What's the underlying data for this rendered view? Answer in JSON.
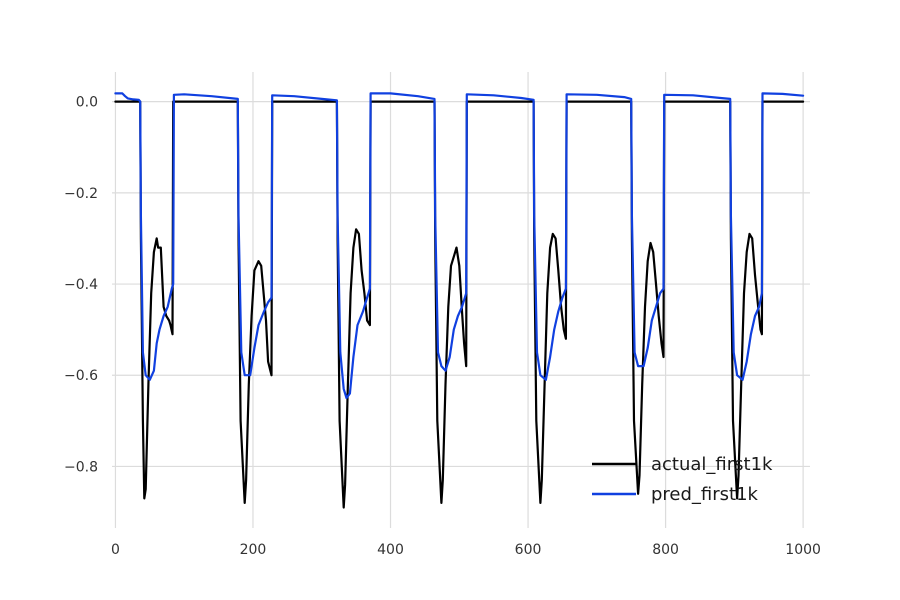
{
  "chart_data": {
    "type": "line",
    "title": "",
    "xlabel": "",
    "ylabel": "",
    "xlim": [
      -5,
      1010
    ],
    "ylim": [
      -0.935,
      0.065
    ],
    "xticks": [
      0,
      200,
      400,
      600,
      800,
      1000
    ],
    "yticks": [
      0.0,
      -0.2,
      -0.4,
      -0.6,
      -0.8
    ],
    "xtick_labels": [
      "0",
      "200",
      "400",
      "600",
      "800",
      "1000"
    ],
    "ytick_labels": [
      "0.0",
      "−0.2",
      "−0.4",
      "−0.6",
      "−0.8"
    ],
    "grid": true,
    "legend_position": "lower-right",
    "series": [
      {
        "name": "actual_first1k",
        "color": "#000000",
        "points": [
          [
            0,
            0.0
          ],
          [
            36,
            0.0
          ],
          [
            37,
            -0.3
          ],
          [
            40,
            -0.7
          ],
          [
            42,
            -0.87
          ],
          [
            44,
            -0.85
          ],
          [
            48,
            -0.62
          ],
          [
            52,
            -0.42
          ],
          [
            56,
            -0.33
          ],
          [
            60,
            -0.3
          ],
          [
            62,
            -0.32
          ],
          [
            66,
            -0.32
          ],
          [
            70,
            -0.45
          ],
          [
            74,
            -0.47
          ],
          [
            78,
            -0.48
          ],
          [
            80,
            -0.49
          ],
          [
            83,
            -0.51
          ],
          [
            84,
            0.0
          ],
          [
            178,
            0.0
          ],
          [
            179,
            -0.3
          ],
          [
            182,
            -0.7
          ],
          [
            188,
            -0.88
          ],
          [
            190,
            -0.83
          ],
          [
            194,
            -0.62
          ],
          [
            198,
            -0.47
          ],
          [
            202,
            -0.37
          ],
          [
            208,
            -0.35
          ],
          [
            212,
            -0.36
          ],
          [
            216,
            -0.43
          ],
          [
            219,
            -0.48
          ],
          [
            222,
            -0.57
          ],
          [
            227,
            -0.6
          ],
          [
            228,
            0.0
          ],
          [
            322,
            0.0
          ],
          [
            323,
            -0.3
          ],
          [
            326,
            -0.7
          ],
          [
            332,
            -0.89
          ],
          [
            334,
            -0.84
          ],
          [
            338,
            -0.62
          ],
          [
            342,
            -0.42
          ],
          [
            346,
            -0.32
          ],
          [
            350,
            -0.28
          ],
          [
            354,
            -0.29
          ],
          [
            358,
            -0.37
          ],
          [
            362,
            -0.42
          ],
          [
            366,
            -0.48
          ],
          [
            370,
            -0.49
          ],
          [
            371,
            0.0
          ],
          [
            464,
            0.0
          ],
          [
            465,
            -0.3
          ],
          [
            468,
            -0.7
          ],
          [
            474,
            -0.88
          ],
          [
            476,
            -0.83
          ],
          [
            480,
            -0.62
          ],
          [
            484,
            -0.45
          ],
          [
            488,
            -0.36
          ],
          [
            492,
            -0.34
          ],
          [
            496,
            -0.32
          ],
          [
            500,
            -0.36
          ],
          [
            504,
            -0.46
          ],
          [
            507,
            -0.53
          ],
          [
            510,
            -0.58
          ],
          [
            511,
            0.0
          ],
          [
            608,
            0.0
          ],
          [
            609,
            -0.3
          ],
          [
            612,
            -0.7
          ],
          [
            618,
            -0.88
          ],
          [
            620,
            -0.83
          ],
          [
            624,
            -0.62
          ],
          [
            628,
            -0.42
          ],
          [
            632,
            -0.32
          ],
          [
            636,
            -0.29
          ],
          [
            640,
            -0.3
          ],
          [
            644,
            -0.37
          ],
          [
            648,
            -0.45
          ],
          [
            652,
            -0.5
          ],
          [
            655,
            -0.52
          ],
          [
            656,
            0.0
          ],
          [
            750,
            0.0
          ],
          [
            751,
            -0.3
          ],
          [
            754,
            -0.7
          ],
          [
            760,
            -0.86
          ],
          [
            762,
            -0.82
          ],
          [
            766,
            -0.62
          ],
          [
            770,
            -0.45
          ],
          [
            774,
            -0.35
          ],
          [
            778,
            -0.31
          ],
          [
            782,
            -0.33
          ],
          [
            786,
            -0.4
          ],
          [
            790,
            -0.47
          ],
          [
            794,
            -0.53
          ],
          [
            797,
            -0.56
          ],
          [
            798,
            0.0
          ],
          [
            894,
            0.0
          ],
          [
            895,
            -0.3
          ],
          [
            898,
            -0.7
          ],
          [
            904,
            -0.87
          ],
          [
            906,
            -0.82
          ],
          [
            910,
            -0.62
          ],
          [
            914,
            -0.42
          ],
          [
            918,
            -0.33
          ],
          [
            922,
            -0.29
          ],
          [
            926,
            -0.3
          ],
          [
            930,
            -0.38
          ],
          [
            934,
            -0.44
          ],
          [
            938,
            -0.5
          ],
          [
            940,
            -0.51
          ],
          [
            941,
            0.0
          ],
          [
            1000,
            0.0
          ]
        ]
      },
      {
        "name": "pred_first1k",
        "color": "#1040e0",
        "points": [
          [
            0,
            0.018
          ],
          [
            10,
            0.018
          ],
          [
            14,
            0.012
          ],
          [
            18,
            0.007
          ],
          [
            26,
            0.005
          ],
          [
            34,
            0.004
          ],
          [
            36,
            0.0
          ],
          [
            37,
            -0.25
          ],
          [
            40,
            -0.55
          ],
          [
            44,
            -0.6
          ],
          [
            50,
            -0.61
          ],
          [
            56,
            -0.59
          ],
          [
            60,
            -0.53
          ],
          [
            64,
            -0.5
          ],
          [
            70,
            -0.47
          ],
          [
            76,
            -0.45
          ],
          [
            82,
            -0.41
          ],
          [
            84,
            -0.4
          ],
          [
            85,
            0.015
          ],
          [
            100,
            0.016
          ],
          [
            140,
            0.012
          ],
          [
            178,
            0.006
          ],
          [
            179,
            -0.25
          ],
          [
            183,
            -0.55
          ],
          [
            188,
            -0.6
          ],
          [
            196,
            -0.6
          ],
          [
            202,
            -0.54
          ],
          [
            208,
            -0.49
          ],
          [
            216,
            -0.46
          ],
          [
            222,
            -0.44
          ],
          [
            227,
            -0.43
          ],
          [
            228,
            0.014
          ],
          [
            260,
            0.012
          ],
          [
            300,
            0.006
          ],
          [
            322,
            0.003
          ],
          [
            323,
            -0.25
          ],
          [
            327,
            -0.55
          ],
          [
            332,
            -0.63
          ],
          [
            336,
            -0.65
          ],
          [
            341,
            -0.64
          ],
          [
            346,
            -0.56
          ],
          [
            352,
            -0.49
          ],
          [
            360,
            -0.46
          ],
          [
            366,
            -0.43
          ],
          [
            370,
            -0.41
          ],
          [
            371,
            0.018
          ],
          [
            400,
            0.018
          ],
          [
            440,
            0.012
          ],
          [
            464,
            0.006
          ],
          [
            465,
            -0.25
          ],
          [
            469,
            -0.55
          ],
          [
            474,
            -0.58
          ],
          [
            480,
            -0.59
          ],
          [
            486,
            -0.56
          ],
          [
            492,
            -0.5
          ],
          [
            498,
            -0.47
          ],
          [
            504,
            -0.45
          ],
          [
            510,
            -0.42
          ],
          [
            511,
            0.016
          ],
          [
            550,
            0.014
          ],
          [
            590,
            0.008
          ],
          [
            608,
            0.004
          ],
          [
            609,
            -0.25
          ],
          [
            613,
            -0.55
          ],
          [
            618,
            -0.6
          ],
          [
            626,
            -0.61
          ],
          [
            632,
            -0.56
          ],
          [
            638,
            -0.5
          ],
          [
            644,
            -0.46
          ],
          [
            650,
            -0.43
          ],
          [
            655,
            -0.41
          ],
          [
            656,
            0.016
          ],
          [
            700,
            0.015
          ],
          [
            740,
            0.01
          ],
          [
            750,
            0.006
          ],
          [
            751,
            -0.25
          ],
          [
            755,
            -0.55
          ],
          [
            760,
            -0.58
          ],
          [
            768,
            -0.58
          ],
          [
            774,
            -0.54
          ],
          [
            780,
            -0.48
          ],
          [
            786,
            -0.45
          ],
          [
            792,
            -0.42
          ],
          [
            797,
            -0.41
          ],
          [
            798,
            0.015
          ],
          [
            840,
            0.014
          ],
          [
            880,
            0.008
          ],
          [
            894,
            0.006
          ],
          [
            895,
            -0.25
          ],
          [
            899,
            -0.55
          ],
          [
            904,
            -0.6
          ],
          [
            912,
            -0.61
          ],
          [
            918,
            -0.57
          ],
          [
            924,
            -0.51
          ],
          [
            930,
            -0.47
          ],
          [
            936,
            -0.45
          ],
          [
            940,
            -0.42
          ],
          [
            941,
            0.018
          ],
          [
            970,
            0.017
          ],
          [
            1000,
            0.013
          ]
        ]
      }
    ]
  }
}
